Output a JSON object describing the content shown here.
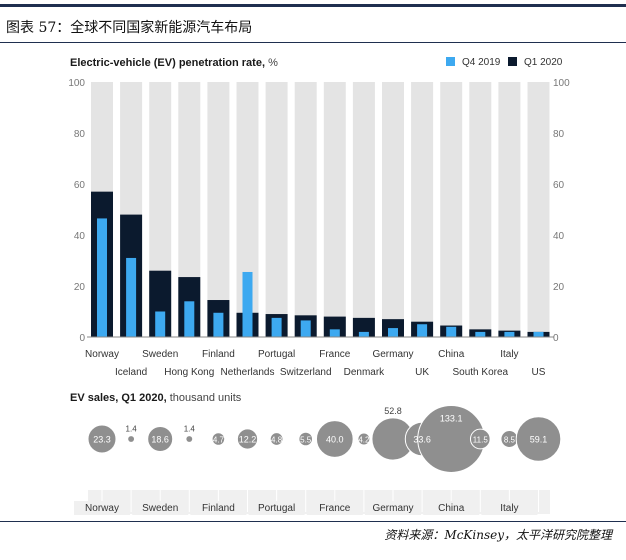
{
  "figure": {
    "caption": "图表 57：全球不同国家新能源汽车布局",
    "source": "资料来源：McKinsey，太平洋研究院整理"
  },
  "colors": {
    "q4_2019": "#3da9f0",
    "q1_2020": "#0b1a2e",
    "track": "#e4e4e4",
    "bubble": "#8f8f8f"
  },
  "chart_data": [
    {
      "type": "bar",
      "title_bold": "Electric-vehicle (EV) penetration rate,",
      "title_unit": "%",
      "categories": [
        "Norway",
        "Iceland",
        "Sweden",
        "Hong Kong",
        "Finland",
        "Netherlands",
        "Portugal",
        "Switzerland",
        "France",
        "Denmark",
        "Germany",
        "UK",
        "China",
        "South Korea",
        "Italy",
        "US"
      ],
      "series": [
        {
          "name": "Q4 2019",
          "values": [
            46.5,
            31,
            10,
            14,
            9.5,
            25.5,
            7.5,
            6.5,
            3,
            2,
            3.5,
            5,
            4,
            2,
            2,
            2
          ]
        },
        {
          "name": "Q1 2020",
          "values": [
            57,
            48,
            26,
            23.5,
            14.5,
            9.5,
            9,
            8.5,
            8,
            7.5,
            7,
            6,
            4.5,
            3,
            2.5,
            2
          ]
        }
      ],
      "ylim": [
        0,
        100
      ],
      "yticks": [
        "0",
        "20",
        "40",
        "60",
        "80",
        "100"
      ],
      "background_max": 100,
      "legend_position": "top-right"
    },
    {
      "type": "bubble",
      "title_bold": "EV sales, Q1 2020,",
      "title_unit": "thousand units",
      "bubbles": [
        {
          "country": "Norway",
          "value": 23.3,
          "label": "23.3",
          "label_position": "inside"
        },
        {
          "country": "Iceland",
          "value": 1.4,
          "label": "1.4",
          "label_position": "above"
        },
        {
          "country": "Sweden",
          "value": 18.6,
          "label": "18.6",
          "label_position": "inside"
        },
        {
          "country": "Hong Kong",
          "value": 1.4,
          "label": "1.4",
          "label_position": "above"
        },
        {
          "country": "Finland",
          "value": 4.7,
          "label": "4.7",
          "label_position": "inside"
        },
        {
          "country": "Netherlands",
          "value": 12.2,
          "label": "12.2",
          "label_position": "inside"
        },
        {
          "country": "Portugal",
          "value": 4.8,
          "label": "4.8",
          "label_position": "inside"
        },
        {
          "country": "Switzerland",
          "value": 5.5,
          "label": "5.5",
          "label_position": "inside"
        },
        {
          "country": "France",
          "value": 40.0,
          "label": "40.0",
          "label_position": "inside"
        },
        {
          "country": "Denmark",
          "value": 4.2,
          "label": "4.2",
          "label_position": "inside"
        },
        {
          "country": "Germany",
          "value": 52.8,
          "label": "52.8",
          "label_position": "above"
        },
        {
          "country": "UK",
          "value": 33.6,
          "label": "33.6",
          "label_position": "inside"
        },
        {
          "country": "China",
          "value": 133.1,
          "label": "133.1",
          "label_position": "top-inside"
        },
        {
          "country": "South Korea",
          "value": 11.5,
          "label": "11.5",
          "label_position": "inside"
        },
        {
          "country": "Italy",
          "value": 8.5,
          "label": "8.5",
          "label_position": "inside"
        },
        {
          "country": "US",
          "value": 59.1,
          "label": "59.1",
          "label_position": "inside"
        }
      ],
      "labeled_countries": [
        "Norway",
        "Sweden",
        "Finland",
        "Portugal",
        "France",
        "Germany",
        "China",
        "Italy"
      ]
    }
  ]
}
